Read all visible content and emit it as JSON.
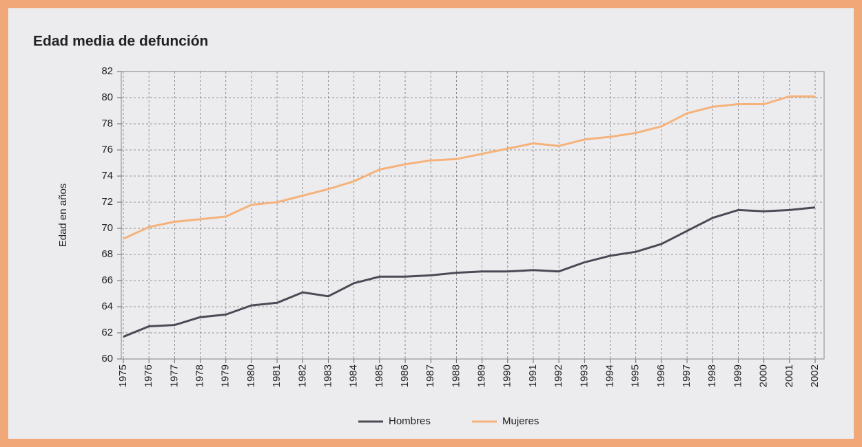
{
  "chart_data": {
    "type": "line",
    "title": "Edad media de defunción",
    "y_label": "Edad en años",
    "categories": [
      "1975",
      "1976",
      "1977",
      "1978",
      "1979",
      "1980",
      "1981",
      "1982",
      "1983",
      "1984",
      "1985",
      "1986",
      "1987",
      "1988",
      "1989",
      "1990",
      "1991",
      "1992",
      "1993",
      "1994",
      "1995",
      "1996",
      "1997",
      "1998",
      "1999",
      "2000",
      "2001",
      "2002"
    ],
    "series": [
      {
        "name": "Hombres",
        "color": "#4a4a55",
        "values": [
          61.7,
          62.5,
          62.6,
          63.2,
          63.4,
          64.1,
          64.3,
          65.1,
          64.8,
          65.8,
          66.3,
          66.3,
          66.4,
          66.6,
          66.7,
          66.7,
          66.8,
          66.7,
          67.4,
          67.9,
          68.2,
          68.8,
          69.8,
          70.8,
          71.4,
          71.3,
          71.4,
          71.6
        ]
      },
      {
        "name": "Mujeres",
        "color": "#f5b27a",
        "values": [
          69.2,
          70.1,
          70.5,
          70.7,
          70.9,
          71.8,
          72.0,
          72.5,
          73.0,
          73.6,
          74.5,
          74.9,
          75.2,
          75.3,
          75.7,
          76.1,
          76.5,
          76.3,
          76.8,
          77.0,
          77.3,
          77.8,
          78.8,
          79.3,
          79.5,
          79.5,
          80.1,
          80.1
        ]
      }
    ],
    "ylim": [
      60,
      82
    ],
    "yticks": [
      60,
      62,
      64,
      66,
      68,
      70,
      72,
      74,
      76,
      78,
      80,
      82
    ],
    "grid": true
  }
}
